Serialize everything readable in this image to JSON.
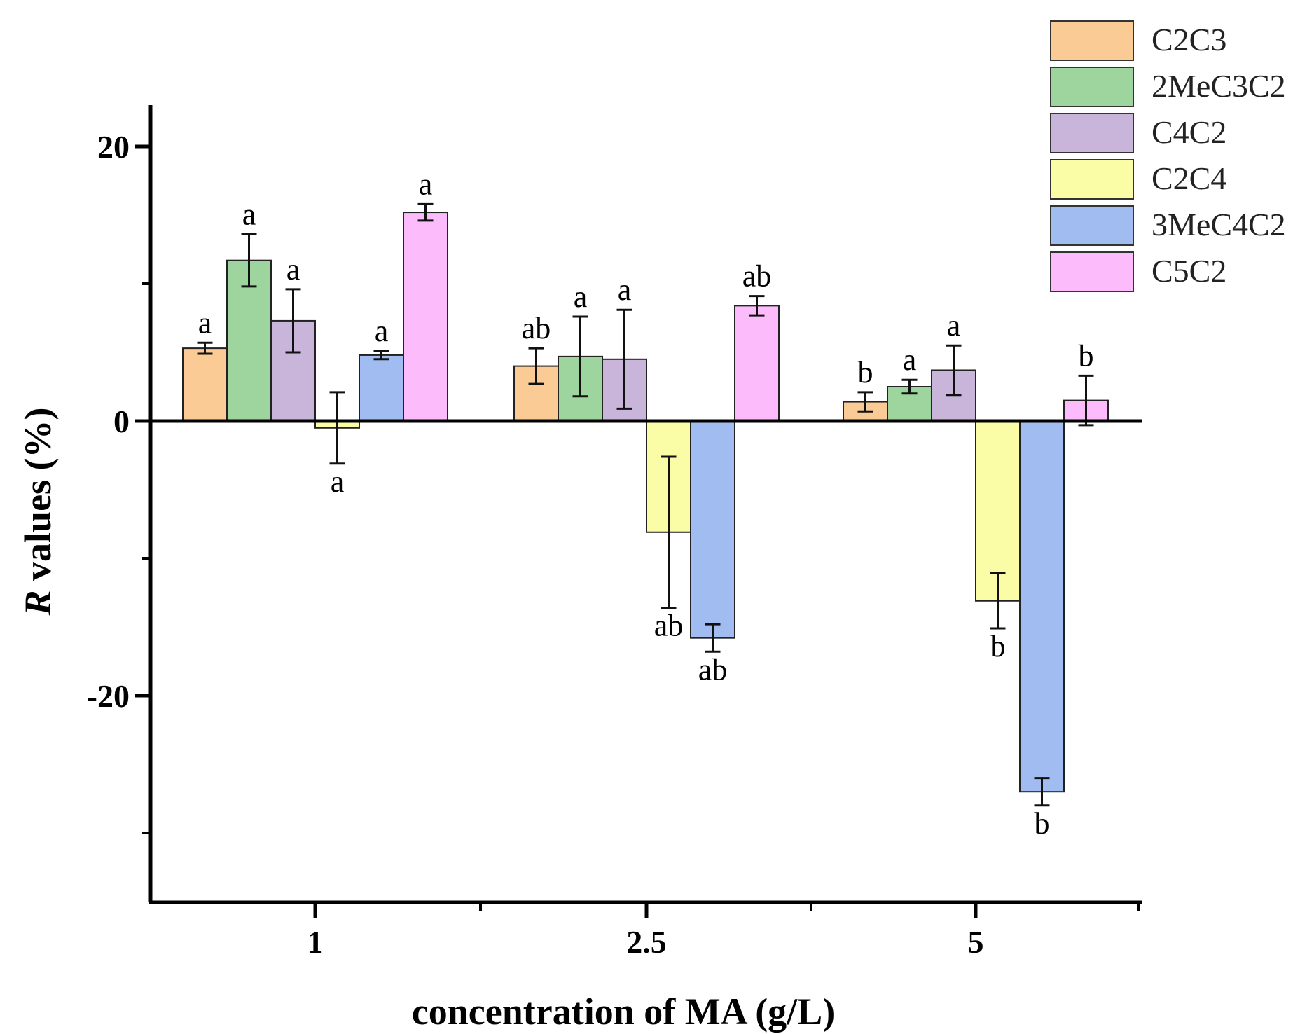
{
  "chart_data": {
    "type": "bar",
    "title": "",
    "xlabel": "concentration of MA (g/L)",
    "ylabel_italic": "R",
    "ylabel_rest": " values (%)",
    "ylim": [
      -35,
      23
    ],
    "yticks": [
      20,
      0,
      -20
    ],
    "ytick_labels": [
      "20",
      "0",
      "-20"
    ],
    "categories": [
      "1",
      "2.5",
      "5"
    ],
    "legend_position": "top-right",
    "series": [
      {
        "name": "C2C3",
        "color": "#fbcb95",
        "values": [
          5.3,
          4.0,
          1.4
        ],
        "errors": [
          0.4,
          1.3,
          0.7
        ],
        "labels": [
          "a",
          "ab",
          "b"
        ]
      },
      {
        "name": "2MeC3C2",
        "color": "#9ed59e",
        "values": [
          11.7,
          4.7,
          2.5
        ],
        "errors": [
          1.9,
          2.9,
          0.5
        ],
        "labels": [
          "a",
          "a",
          "a"
        ]
      },
      {
        "name": "C4C2",
        "color": "#c9b5d9",
        "values": [
          7.3,
          4.5,
          3.7
        ],
        "errors": [
          2.3,
          3.6,
          1.8
        ],
        "labels": [
          "a",
          "a",
          "a"
        ]
      },
      {
        "name": "C2C4",
        "color": "#fbfca6",
        "values": [
          -0.5,
          -8.1,
          -13.1
        ],
        "errors": [
          2.6,
          5.5,
          2.0
        ],
        "labels": [
          "a",
          "ab",
          "b"
        ]
      },
      {
        "name": "3MeC4C2",
        "color": "#a0bcf0",
        "values": [
          4.8,
          -15.8,
          -27.0
        ],
        "errors": [
          0.3,
          1.0,
          1.0
        ],
        "labels": [
          "a",
          "ab",
          "b"
        ]
      },
      {
        "name": "C5C2",
        "color": "#fcbcfb",
        "values": [
          15.2,
          8.4,
          1.5
        ],
        "errors": [
          0.6,
          0.7,
          1.8
        ],
        "labels": [
          "a",
          "ab",
          "b"
        ]
      }
    ]
  }
}
